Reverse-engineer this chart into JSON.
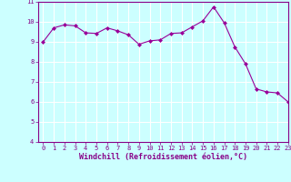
{
  "x": [
    0,
    1,
    2,
    3,
    4,
    5,
    6,
    7,
    8,
    9,
    10,
    11,
    12,
    13,
    14,
    15,
    16,
    17,
    18,
    19,
    20,
    21,
    22,
    23
  ],
  "y": [
    9.0,
    9.7,
    9.85,
    9.8,
    9.45,
    9.42,
    9.7,
    9.55,
    9.35,
    8.88,
    9.05,
    9.1,
    9.42,
    9.45,
    9.75,
    10.05,
    10.75,
    9.95,
    8.75,
    7.9,
    6.65,
    6.5,
    6.45,
    6.0
  ],
  "xlabel": "Windchill (Refroidissement éolien,°C)",
  "line_color": "#990099",
  "marker": "D",
  "marker_size": 2,
  "background_color": "#ccffff",
  "grid_color": "#ffffff",
  "ylim": [
    4,
    11
  ],
  "xlim": [
    -0.5,
    23
  ],
  "yticks": [
    4,
    5,
    6,
    7,
    8,
    9,
    10,
    11
  ],
  "xticks": [
    0,
    1,
    2,
    3,
    4,
    5,
    6,
    7,
    8,
    9,
    10,
    11,
    12,
    13,
    14,
    15,
    16,
    17,
    18,
    19,
    20,
    21,
    22,
    23
  ],
  "tick_color": "#880088",
  "label_fontsize": 5,
  "xlabel_fontsize": 6
}
